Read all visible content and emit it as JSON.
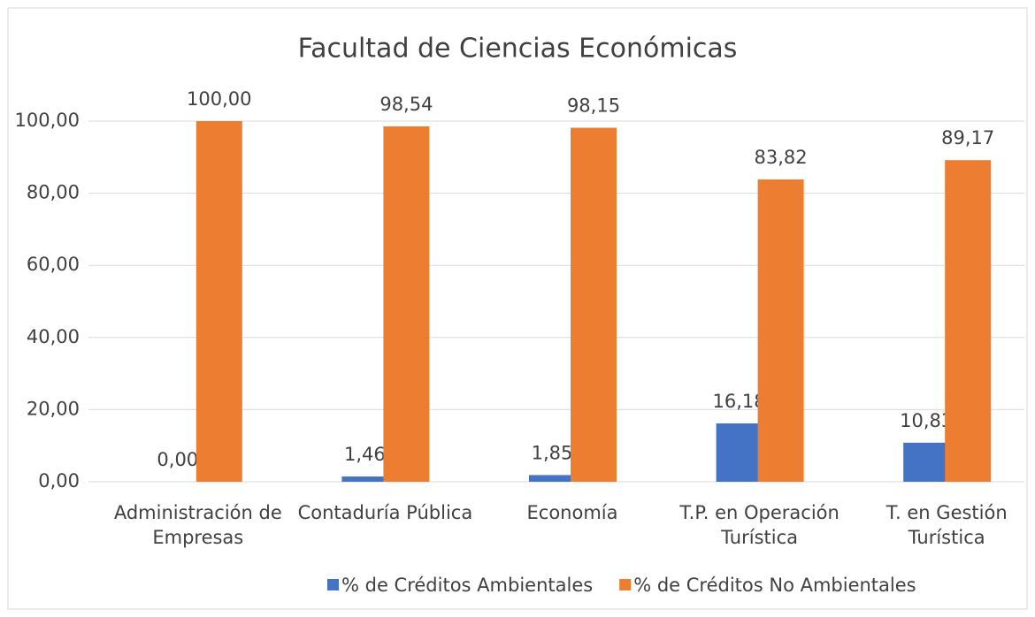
{
  "chart_data": {
    "type": "bar",
    "title": "Facultad de Ciencias Económicas",
    "categories": [
      "Administración de Empresas",
      "Contaduría Pública",
      "Economía",
      "T.P. en Operación Turística",
      "T. en Gestión Turística"
    ],
    "series": [
      {
        "name": "% de Créditos Ambientales",
        "color": "#4472c4",
        "values": [
          0,
          1.46,
          1.85,
          16.18,
          10.83
        ],
        "value_labels": [
          "0,00",
          "1,46",
          "1,85",
          "16,18",
          "10,83"
        ]
      },
      {
        "name": "% de Créditos No Ambientales",
        "color": "#ed7d31",
        "values": [
          100,
          98.54,
          98.15,
          83.82,
          89.17
        ],
        "value_labels": [
          "100,00",
          "98,54",
          "98,15",
          "83,82",
          "89,17"
        ]
      }
    ],
    "ylim": [
      0,
      100
    ],
    "yticks": [
      {
        "value": 0,
        "label": "0,00"
      },
      {
        "value": 20,
        "label": "20,00"
      },
      {
        "value": 40,
        "label": "40,00"
      },
      {
        "value": 60,
        "label": "60,00"
      },
      {
        "value": 80,
        "label": "80,00"
      },
      {
        "value": 100,
        "label": "100,00"
      }
    ],
    "grid": true,
    "legend": "bottom"
  }
}
